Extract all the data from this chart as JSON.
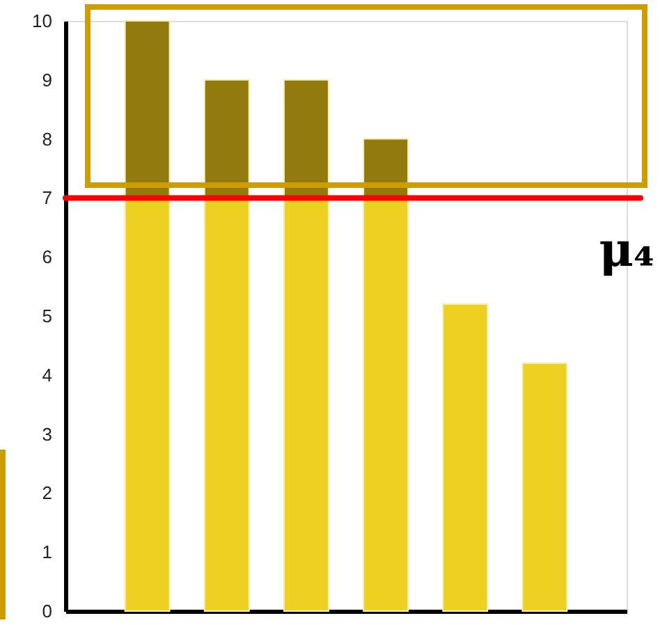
{
  "chart_data": {
    "type": "bar",
    "stacked": true,
    "categories": [
      null,
      null,
      null,
      null,
      null,
      null
    ],
    "series": [
      {
        "color": "#eed022",
        "values": [
          7,
          7,
          7,
          7,
          5.2,
          4.2
        ]
      },
      {
        "color": "#937a0c",
        "values": [
          3,
          2,
          2,
          1,
          null,
          null
        ]
      }
    ],
    "ylim": [
      0,
      10
    ],
    "yticks": [
      0,
      1,
      2,
      3,
      4,
      5,
      6,
      7,
      8,
      9,
      10
    ],
    "tick_labels": "y",
    "grid": false,
    "ref_lines": [
      {
        "axis": "y",
        "value": 7,
        "label": "μ₄",
        "color": "#ff0000"
      }
    ]
  }
}
